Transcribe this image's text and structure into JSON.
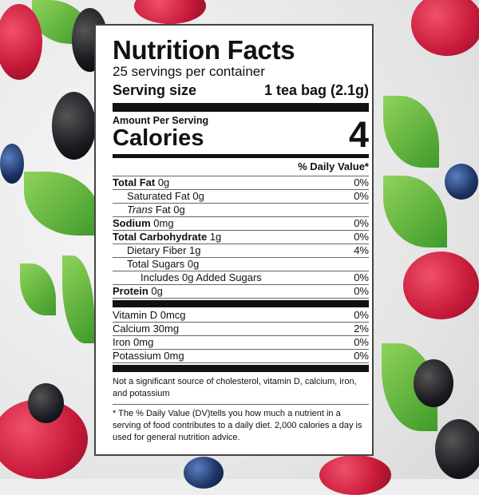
{
  "label": {
    "title": "Nutrition Facts",
    "servings": "25 servings per container",
    "serving_size_label": "Serving size",
    "serving_size_value": "1 tea bag (2.1g)",
    "amount_per_serving": "Amount Per Serving",
    "calories_label": "Calories",
    "calories_value": "4",
    "daily_value_header": "% Daily Value*",
    "nutrients": [
      {
        "bold": "Total Fat",
        "rest": " 0g",
        "dv": "0%"
      },
      {
        "bold": "",
        "rest": "Saturated Fat 0g",
        "dv": "0%"
      },
      {
        "italic": "Trans",
        "rest": " Fat 0g",
        "dv": ""
      },
      {
        "bold": "Sodium",
        "rest": " 0mg",
        "dv": "0%"
      },
      {
        "bold": "Total Carbohydrate",
        "rest": " 1g",
        "dv": "0%"
      },
      {
        "bold": "",
        "rest": "Dietary Fiber 1g",
        "dv": "4%"
      },
      {
        "bold": "",
        "rest": "Total Sugars 0g",
        "dv": ""
      },
      {
        "bold": "",
        "rest": "Includes 0g Added Sugars",
        "dv": "0%"
      },
      {
        "bold": "Protein",
        "rest": " 0g",
        "dv": "0%"
      }
    ],
    "vitamins": [
      {
        "name": "Vitamin D 0mcg",
        "dv": "0%"
      },
      {
        "name": "Calcium 30mg",
        "dv": "2%"
      },
      {
        "name": "Iron 0mg",
        "dv": "0%"
      },
      {
        "name": "Potassium 0mg",
        "dv": "0%"
      }
    ],
    "note": "Not a significant source of cholesterol, vitamin D, calcium, iron, and potassium",
    "footnote": "* The % Daily Value (DV)tells you how much a nutrient in a serving of food contributes to a daily diet. 2,000 calories a day is used for general nutrition advice."
  }
}
